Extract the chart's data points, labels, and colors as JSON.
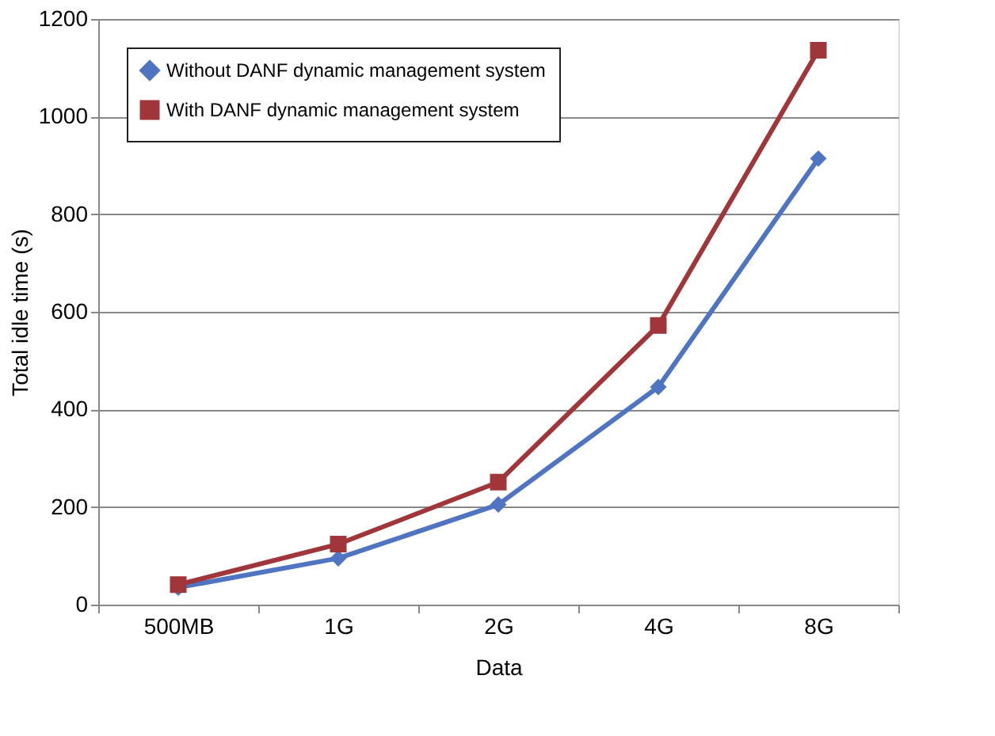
{
  "chart_data": {
    "type": "line",
    "xlabel": "Data",
    "ylabel": "Total idle time (s)",
    "categories": [
      "500MB",
      "1G",
      "2G",
      "4G",
      "8G"
    ],
    "series": [
      {
        "name": "Without DANF dynamic management system",
        "color": "#4f74c2",
        "marker": "diamond",
        "values": [
          35,
          95,
          205,
          446,
          914
        ]
      },
      {
        "name": "With DANF dynamic management system",
        "color": "#a0353a",
        "marker": "square",
        "values": [
          41,
          124,
          251,
          572,
          1136
        ]
      }
    ],
    "ylim": [
      0,
      1200
    ],
    "yticks": [
      0,
      200,
      400,
      600,
      800,
      1000,
      1200
    ],
    "grid": "y",
    "legend": "top left"
  }
}
